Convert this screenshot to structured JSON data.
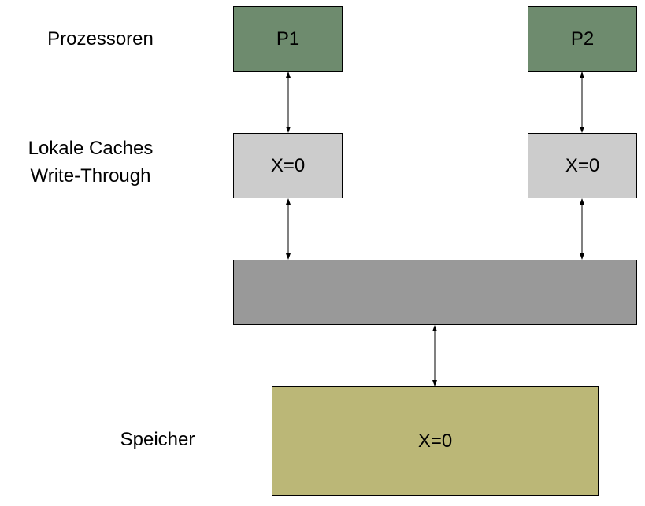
{
  "labels": {
    "processors": "Prozessoren",
    "caches_line1": "Lokale Caches",
    "caches_line2": "Write-Through",
    "memory": "Speicher"
  },
  "p1": "P1",
  "p2": "P2",
  "cache1": "X=0",
  "cache2": "X=0",
  "memory_value": "X=0",
  "colors": {
    "processor": "#6e8b6e",
    "cache": "#cccccc",
    "bus": "#999999",
    "memory": "#bbb777"
  }
}
